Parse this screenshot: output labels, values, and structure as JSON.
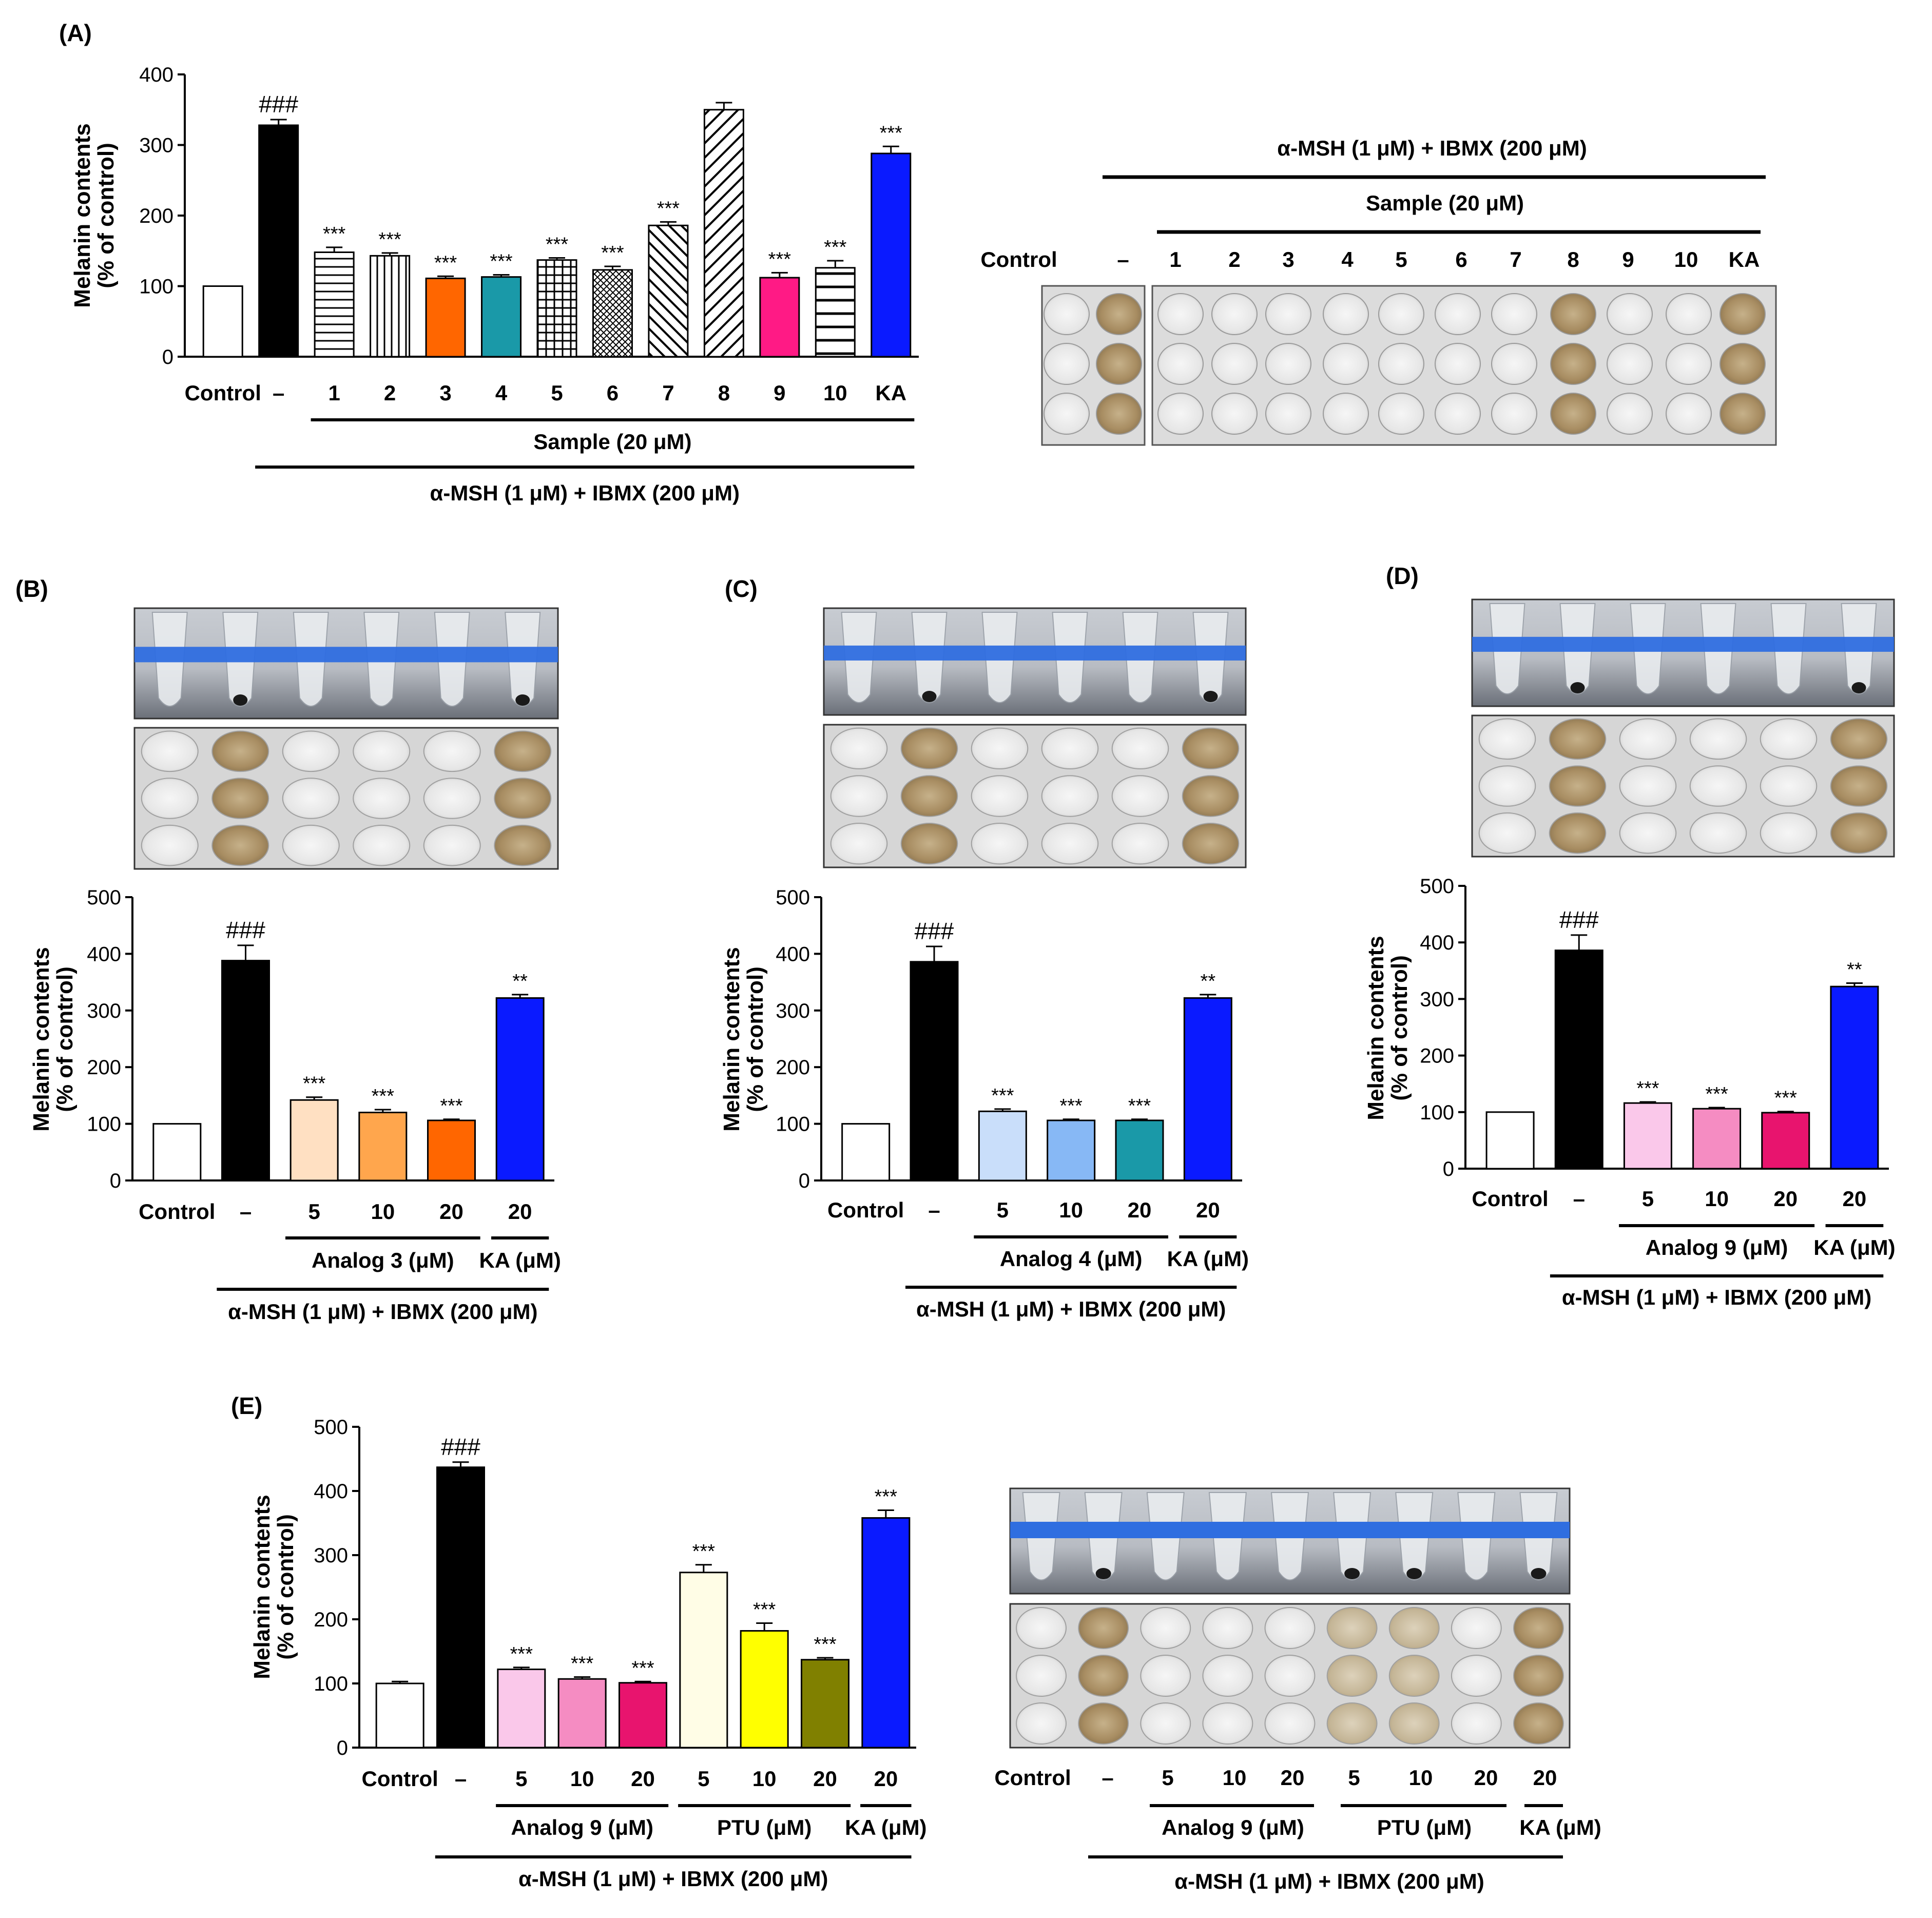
{
  "chart_data": [
    {
      "panel": "(A)",
      "type": "bar",
      "ylabel": "Melanin contents\n(% of control)",
      "ylim": [
        0,
        400
      ],
      "yticks": [
        0,
        100,
        200,
        300,
        400
      ],
      "categories": [
        "Control",
        "–",
        "1",
        "2",
        "3",
        "4",
        "5",
        "6",
        "7",
        "8",
        "9",
        "10",
        "KA"
      ],
      "values": [
        100,
        328,
        148,
        143,
        111,
        113,
        137,
        123,
        186,
        350,
        112,
        126,
        288
      ],
      "errors": [
        0,
        8,
        7,
        4,
        3,
        3,
        3,
        5,
        5,
        10,
        7,
        10,
        10
      ],
      "significance": [
        "",
        "###",
        "***",
        "***",
        "***",
        "***",
        "***",
        "***",
        "***",
        "",
        "***",
        "***",
        "***"
      ],
      "bar_styles": [
        "white",
        "black",
        "hstripe",
        "vstripe",
        "#ff6600",
        "#1a99a8",
        "grid",
        "dots",
        "diag-back",
        "diag-fwd",
        "#ff1a85",
        "hstripe-wide",
        "#0a1aff"
      ],
      "group_labels": [
        {
          "text": "Sample (20 μM)",
          "from": 2,
          "to": 12,
          "level": 1
        },
        {
          "text": "α-MSH (1 μM) + IBMX (200 μM)",
          "from": 1,
          "to": 12,
          "level": 2
        }
      ]
    },
    {
      "panel": "(B)",
      "type": "bar",
      "ylabel": "Melanin contents\n(% of control)",
      "ylim": [
        0,
        500
      ],
      "yticks": [
        0,
        100,
        200,
        300,
        400,
        500
      ],
      "categories": [
        "Control",
        "–",
        "5",
        "10",
        "20",
        "20"
      ],
      "values": [
        100,
        388,
        142,
        120,
        106,
        322
      ],
      "errors": [
        0,
        27,
        5,
        5,
        2,
        6
      ],
      "significance": [
        "",
        "###",
        "***",
        "***",
        "***",
        "**"
      ],
      "bar_styles": [
        "white",
        "black",
        "#ffe0c2",
        "#ffa64d",
        "#ff6600",
        "#0a1aff"
      ],
      "group_labels": [
        {
          "text": "Analog 3 (μM)",
          "from": 2,
          "to": 4,
          "level": 1
        },
        {
          "text": "KA (μM)",
          "from": 5,
          "to": 5,
          "level": 1
        },
        {
          "text": "α-MSH (1 μM) + IBMX (200 μM)",
          "from": 1,
          "to": 5,
          "level": 2
        }
      ]
    },
    {
      "panel": "(C)",
      "type": "bar",
      "ylabel": "Melanin contents\n(% of control)",
      "ylim": [
        0,
        500
      ],
      "yticks": [
        0,
        100,
        200,
        300,
        400,
        500
      ],
      "categories": [
        "Control",
        "–",
        "5",
        "10",
        "20",
        "20"
      ],
      "values": [
        100,
        386,
        122,
        106,
        106,
        322
      ],
      "errors": [
        0,
        27,
        4,
        2,
        2,
        6
      ],
      "significance": [
        "",
        "###",
        "***",
        "***",
        "***",
        "**"
      ],
      "bar_styles": [
        "white",
        "black",
        "#c9defa",
        "#87b8f5",
        "#1a99a8",
        "#0a1aff"
      ],
      "group_labels": [
        {
          "text": "Analog 4 (μM)",
          "from": 2,
          "to": 4,
          "level": 1
        },
        {
          "text": "KA (μM)",
          "from": 5,
          "to": 5,
          "level": 1
        },
        {
          "text": "α-MSH (1 μM) + IBMX (200 μM)",
          "from": 1,
          "to": 5,
          "level": 2
        }
      ]
    },
    {
      "panel": "(D)",
      "type": "bar",
      "ylabel": "Melanin contents\n(% of control)",
      "ylim": [
        0,
        500
      ],
      "yticks": [
        0,
        100,
        200,
        300,
        400,
        500
      ],
      "categories": [
        "Control",
        "–",
        "5",
        "10",
        "20",
        "20"
      ],
      "values": [
        100,
        386,
        116,
        106,
        99,
        322
      ],
      "errors": [
        0,
        27,
        2,
        2,
        2,
        6
      ],
      "significance": [
        "",
        "###",
        "***",
        "***",
        "***",
        "**"
      ],
      "bar_styles": [
        "white",
        "black",
        "#fac8ea",
        "#f58cc2",
        "#e8146e",
        "#0a1aff"
      ],
      "group_labels": [
        {
          "text": "Analog 9 (μM)",
          "from": 2,
          "to": 4,
          "level": 1
        },
        {
          "text": "KA (μM)",
          "from": 5,
          "to": 5,
          "level": 1
        },
        {
          "text": "α-MSH (1 μM) + IBMX (200 μM)",
          "from": 1,
          "to": 5,
          "level": 2
        }
      ]
    },
    {
      "panel": "(E)",
      "type": "bar",
      "ylabel": "Melanin contents\n(% of control)",
      "ylim": [
        0,
        500
      ],
      "yticks": [
        0,
        100,
        200,
        300,
        400,
        500
      ],
      "categories": [
        "Control",
        "–",
        "5",
        "10",
        "20",
        "5",
        "10",
        "20",
        "20"
      ],
      "values": [
        100,
        437,
        122,
        107,
        101,
        273,
        182,
        137,
        358
      ],
      "errors": [
        3,
        8,
        3,
        3,
        2,
        12,
        12,
        3,
        12
      ],
      "significance": [
        "",
        "###",
        "***",
        "***",
        "***",
        "***",
        "***",
        "***",
        "***"
      ],
      "bar_styles": [
        "white",
        "black",
        "#fac8ea",
        "#f58cc2",
        "#e8146e",
        "#fffde6",
        "#ffff00",
        "#808000",
        "#0a1aff"
      ],
      "group_labels": [
        {
          "text": "Analog 9 (μM)",
          "from": 2,
          "to": 4,
          "level": 1
        },
        {
          "text": "PTU (μM)",
          "from": 5,
          "to": 7,
          "level": 1
        },
        {
          "text": "KA (μM)",
          "from": 8,
          "to": 8,
          "level": 1
        },
        {
          "text": "α-MSH (1 μM) + IBMX (200 μM)",
          "from": 1,
          "to": 8,
          "level": 2
        }
      ]
    }
  ],
  "photo_a": {
    "title_top": "α-MSH (1 μM) + IBMX (200 μM)",
    "title_sample": "Sample (20 μM)",
    "labels": [
      "Control",
      "–",
      "1",
      "2",
      "3",
      "4",
      "5",
      "6",
      "7",
      "8",
      "9",
      "10",
      "KA"
    ],
    "dark_wells": [
      1,
      9,
      12
    ]
  },
  "photo_e": {
    "labels": [
      "Control",
      "–",
      "5",
      "10",
      "20",
      "5",
      "10",
      "20",
      "20"
    ],
    "group1": "Analog 9 (μM)",
    "group2": "PTU (μM)",
    "group3": "KA (μM)",
    "group_all": "α-MSH (1 μM) + IBMX (200 μM)",
    "dark_wells": [
      1,
      8
    ],
    "mid_wells": [
      5,
      6
    ]
  },
  "photo_b_dark": [
    1,
    5
  ],
  "photo_c_dark": [
    1,
    5
  ],
  "photo_d_dark": [
    1,
    5
  ],
  "photo_e_pellets": [
    1,
    5,
    6,
    8
  ],
  "colors": {
    "well_dark": "#b29a74",
    "well_mid": "#cbbc9c",
    "well_clear": "#ececec",
    "rack_blue": "#2f6ee0"
  },
  "panel_labels": [
    "(A)",
    "(B)",
    "(C)",
    "(D)",
    "(E)"
  ]
}
